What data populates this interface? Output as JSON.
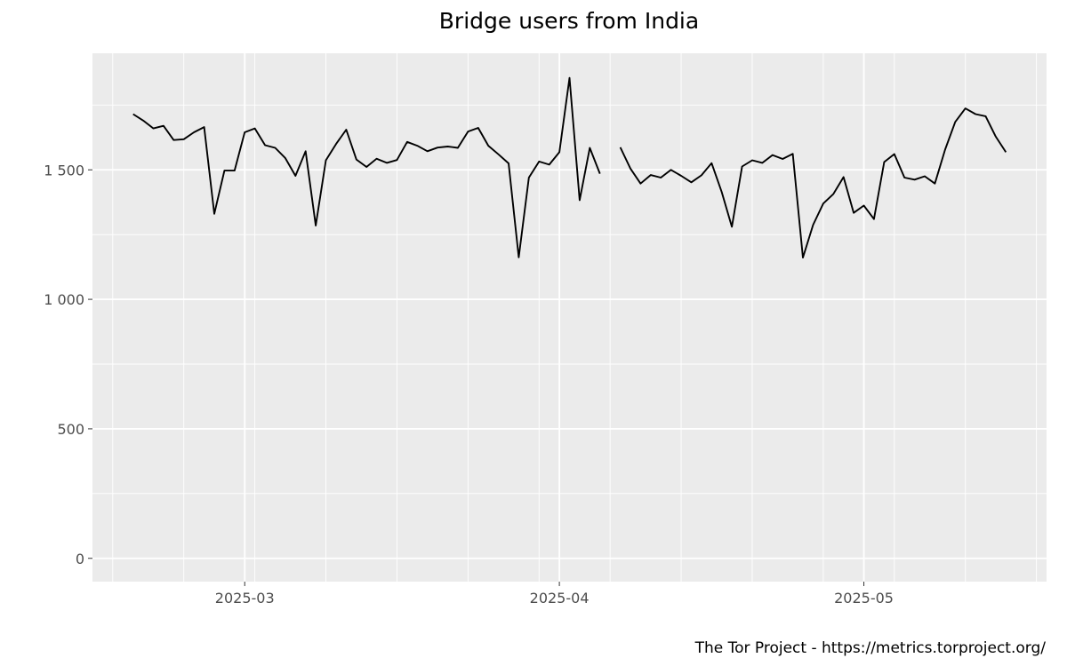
{
  "chart_data": {
    "type": "line",
    "title": "Bridge users from India",
    "xlabel": "",
    "ylabel": "",
    "caption": "The Tor Project - https://metrics.torproject.org/",
    "x_tick_labels": [
      {
        "date": "2025-03-01",
        "label": "2025-03"
      },
      {
        "date": "2025-04-01",
        "label": "2025-04"
      },
      {
        "date": "2025-05-01",
        "label": "2025-05"
      }
    ],
    "y_ticks": [
      0,
      500,
      1000,
      1500
    ],
    "y_tick_labels": [
      "0",
      "500",
      "1 000",
      "1 500"
    ],
    "xlim": [
      "2025-02-14",
      "2025-05-19"
    ],
    "ylim": [
      -90,
      1950
    ],
    "grid": true,
    "colors": {
      "panel_background": "#ebebeb",
      "grid": "#ffffff",
      "line": "#000000"
    },
    "series": [
      {
        "x": [
          "2025-02-18",
          "2025-02-19",
          "2025-02-20",
          "2025-02-21",
          "2025-02-22",
          "2025-02-23",
          "2025-02-24",
          "2025-02-25",
          "2025-02-26",
          "2025-02-27",
          "2025-02-28",
          "2025-03-01",
          "2025-03-02",
          "2025-03-03",
          "2025-03-04",
          "2025-03-05",
          "2025-03-06",
          "2025-03-07",
          "2025-03-08",
          "2025-03-09",
          "2025-03-10",
          "2025-03-11",
          "2025-03-12",
          "2025-03-13",
          "2025-03-14",
          "2025-03-15",
          "2025-03-16",
          "2025-03-17",
          "2025-03-18",
          "2025-03-19",
          "2025-03-20",
          "2025-03-21",
          "2025-03-22",
          "2025-03-23",
          "2025-03-24",
          "2025-03-25",
          "2025-03-26",
          "2025-03-27",
          "2025-03-28",
          "2025-03-29",
          "2025-03-30",
          "2025-03-31",
          "2025-04-01",
          "2025-04-02",
          "2025-04-03",
          "2025-04-04",
          "2025-04-05",
          "2025-04-06",
          "2025-04-07",
          "2025-04-08",
          "2025-04-09",
          "2025-04-10",
          "2025-04-11",
          "2025-04-12",
          "2025-04-13",
          "2025-04-14",
          "2025-04-15",
          "2025-04-16",
          "2025-04-17",
          "2025-04-18",
          "2025-04-19",
          "2025-04-20",
          "2025-04-21",
          "2025-04-22",
          "2025-04-23",
          "2025-04-24",
          "2025-04-25",
          "2025-04-26",
          "2025-04-27",
          "2025-04-28",
          "2025-04-29",
          "2025-04-30",
          "2025-05-01",
          "2025-05-02",
          "2025-05-03",
          "2025-05-04",
          "2025-05-05",
          "2025-05-06",
          "2025-05-07",
          "2025-05-08",
          "2025-05-09",
          "2025-05-10",
          "2025-05-11",
          "2025-05-12",
          "2025-05-13",
          "2025-05-14",
          "2025-05-15"
        ],
        "values": [
          1715,
          1690,
          1660,
          1670,
          1615,
          1618,
          1645,
          1665,
          1330,
          1497,
          1497,
          1645,
          1660,
          1595,
          1585,
          1545,
          1477,
          1572,
          1285,
          1537,
          1600,
          1655,
          1540,
          1511,
          1543,
          1527,
          1538,
          1608,
          1593,
          1572,
          1586,
          1590,
          1585,
          1648,
          1662,
          1593,
          1560,
          1525,
          1162,
          1470,
          1532,
          1520,
          1568,
          1855,
          1383,
          1585,
          1485,
          null,
          1587,
          1505,
          1447,
          1480,
          1470,
          1500,
          1477,
          1452,
          1479,
          1526,
          1414,
          1280,
          1513,
          1537,
          1527,
          1557,
          1542,
          1562,
          1161,
          1288,
          1370,
          1407,
          1472,
          1334,
          1362,
          1310,
          1530,
          1561,
          1470,
          1462,
          1475,
          1447,
          1578,
          1685,
          1737,
          1715,
          1707,
          1628,
          1568
        ]
      }
    ]
  }
}
